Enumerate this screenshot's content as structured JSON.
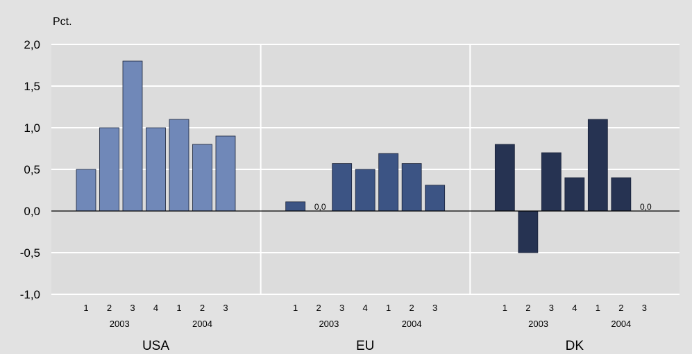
{
  "chart_data": {
    "type": "bar",
    "ylabel": "Pct.",
    "ylim": [
      -1.0,
      2.0
    ],
    "yticks": [
      "-1,0",
      "-0,5",
      "0,0",
      "0,5",
      "1,0",
      "1,5",
      "2,0"
    ],
    "grid": true,
    "quarter_labels": [
      "1",
      "2",
      "3",
      "4",
      "1",
      "2",
      "3"
    ],
    "year_labels": [
      "2003",
      "2004"
    ],
    "zero_label": "0,0",
    "panels": [
      {
        "name": "USA",
        "color": "#7088b8",
        "values": [
          0.5,
          1.0,
          1.8,
          1.0,
          1.1,
          0.8,
          0.9
        ]
      },
      {
        "name": "EU",
        "color": "#3c5484",
        "values": [
          0.11,
          0.0,
          0.57,
          0.5,
          0.69,
          0.57,
          0.31
        ]
      },
      {
        "name": "DK",
        "color": "#263352",
        "values": [
          0.8,
          -0.5,
          0.7,
          0.4,
          1.1,
          0.4,
          0.0
        ]
      }
    ]
  }
}
